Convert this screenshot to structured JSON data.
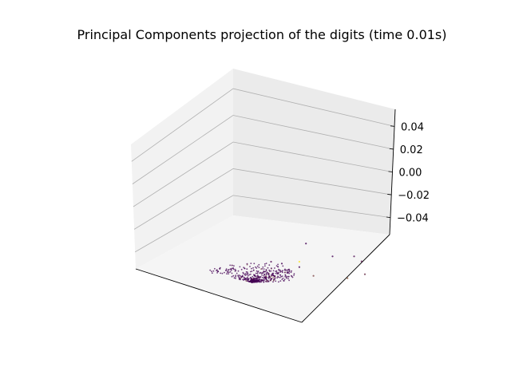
{
  "chart_data": {
    "type": "scatter",
    "projection": "3d",
    "title": "Principal Components projection of the digits (time 0.01s)",
    "xlabel": "",
    "ylabel": "",
    "zlabel": "",
    "grid": true,
    "legend": "none",
    "colormap": "viridis",
    "colors": {
      "pane_left": "#f2f2f2",
      "pane_back": "#ebebeb",
      "pane_floor": "#f5f5f5",
      "grid": "#b0b0b0",
      "axis": "#000000",
      "low": "#440154",
      "high": "#fde725"
    },
    "z_axis": {
      "ticks": [
        -0.04,
        -0.02,
        0.0,
        0.02,
        0.04
      ],
      "tick_labels": [
        "−0.04",
        "−0.02",
        "0.00",
        "0.02",
        "0.04"
      ],
      "range": [
        -0.055,
        0.055
      ]
    },
    "x_axis": {
      "range": [
        -1.0,
        1.0
      ],
      "tick_labels": []
    },
    "y_axis": {
      "range": [
        -1.0,
        1.0
      ],
      "tick_labels": []
    },
    "outliers": [
      {
        "x": -0.05,
        "y": -0.32,
        "z": 0.0,
        "c": 0.05
      },
      {
        "x": 0.42,
        "y": -0.05,
        "z": 0.0,
        "c": 0.0
      },
      {
        "x": 0.55,
        "y": 0.08,
        "z": 0.0,
        "c": 0.05
      },
      {
        "x": 0.5,
        "y": 0.22,
        "z": 0.0,
        "c": 0.1
      },
      {
        "x": 0.28,
        "y": 0.48,
        "z": 0.0,
        "c": 0.2
      },
      {
        "x": 0.1,
        "y": 0.45,
        "z": 0.0,
        "c": 0.4
      },
      {
        "x": 0.12,
        "y": -0.15,
        "z": 0.0,
        "c": 1.0
      },
      {
        "x": 0.02,
        "y": -0.05,
        "z": 0.0,
        "c": 0.0
      },
      {
        "x": 0.5,
        "y": -0.45,
        "z": 0.0,
        "c": 0.0
      },
      {
        "x": -0.02,
        "y": -0.22,
        "z": 0.0,
        "c": 0.0
      },
      {
        "x": -0.06,
        "y": 0.2,
        "z": 0.0,
        "c": 0.3
      }
    ],
    "cluster": {
      "n_points": 520,
      "description": "dense cluster near the origin of the first two principal components"
    }
  }
}
